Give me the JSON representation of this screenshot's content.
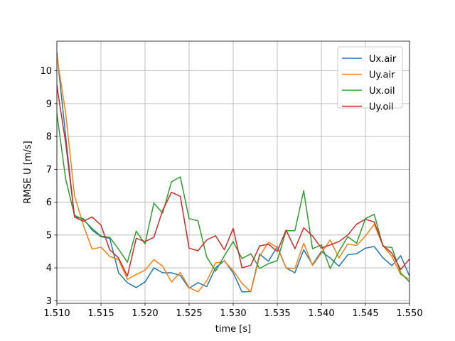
{
  "chart_data": {
    "type": "line",
    "xlabel": "time [s]",
    "ylabel": "RMSE U [m/s]",
    "xlim": [
      1.51,
      1.55
    ],
    "ylim": [
      2.92,
      10.9
    ],
    "xticks": [
      "1.510",
      "1.515",
      "1.520",
      "1.525",
      "1.530",
      "1.535",
      "1.540",
      "1.545",
      "1.550"
    ],
    "yticks": [
      "3",
      "4",
      "5",
      "6",
      "7",
      "8",
      "9",
      "10"
    ],
    "grid": true,
    "legend_position": "top-right",
    "x": [
      1.51,
      1.511,
      1.512,
      1.513,
      1.514,
      1.515,
      1.516,
      1.517,
      1.518,
      1.519,
      1.52,
      1.521,
      1.522,
      1.523,
      1.524,
      1.525,
      1.526,
      1.527,
      1.528,
      1.529,
      1.53,
      1.531,
      1.532,
      1.533,
      1.534,
      1.535,
      1.536,
      1.537,
      1.538,
      1.539,
      1.54,
      1.541,
      1.542,
      1.543,
      1.544,
      1.545,
      1.546,
      1.547,
      1.548,
      1.549,
      1.55
    ],
    "series": [
      {
        "name": "Ux.air",
        "color": "#1f77b4",
        "values": [
          10.55,
          8.0,
          5.55,
          5.5,
          5.15,
          4.95,
          4.9,
          3.85,
          3.55,
          3.4,
          3.57,
          4.0,
          3.85,
          3.85,
          3.77,
          3.38,
          3.55,
          3.43,
          4.0,
          4.22,
          3.85,
          3.27,
          3.28,
          4.42,
          4.2,
          4.65,
          4.0,
          3.85,
          4.55,
          4.1,
          4.5,
          4.3,
          4.05,
          4.4,
          4.43,
          4.6,
          4.65,
          4.3,
          4.07,
          4.37,
          3.75
        ]
      },
      {
        "name": "Uy.air",
        "color": "#ff7f0e",
        "values": [
          10.45,
          8.7,
          6.2,
          5.3,
          4.57,
          4.63,
          4.35,
          4.25,
          3.65,
          3.8,
          3.93,
          4.25,
          4.05,
          3.57,
          3.86,
          3.4,
          3.27,
          3.6,
          4.15,
          4.2,
          3.92,
          3.53,
          3.27,
          4.35,
          4.78,
          4.62,
          4.0,
          3.98,
          4.75,
          4.07,
          4.45,
          4.85,
          4.3,
          4.73,
          4.68,
          4.97,
          5.33,
          4.67,
          4.35,
          3.8,
          3.65
        ]
      },
      {
        "name": "Ux.oil",
        "color": "#2ca02c",
        "values": [
          8.7,
          6.7,
          5.6,
          5.47,
          5.2,
          4.97,
          4.93,
          4.57,
          4.17,
          5.12,
          4.73,
          5.97,
          5.67,
          6.62,
          6.77,
          5.5,
          5.43,
          4.33,
          3.9,
          4.37,
          4.8,
          4.28,
          4.43,
          3.98,
          4.13,
          4.22,
          5.13,
          5.13,
          6.35,
          4.58,
          4.7,
          3.98,
          4.5,
          4.95,
          4.75,
          5.5,
          5.63,
          4.65,
          4.62,
          3.85,
          3.57
        ]
      },
      {
        "name": "Uy.oil",
        "color": "#d62728",
        "values": [
          9.55,
          7.8,
          5.55,
          5.42,
          5.55,
          5.3,
          4.55,
          4.3,
          3.75,
          4.9,
          4.8,
          4.93,
          5.75,
          6.3,
          6.18,
          4.6,
          4.52,
          4.85,
          4.98,
          4.55,
          5.2,
          4.0,
          4.08,
          4.67,
          4.72,
          4.5,
          5.15,
          4.58,
          5.22,
          4.97,
          4.6,
          4.7,
          4.8,
          5.0,
          5.33,
          5.48,
          5.4,
          4.68,
          4.45,
          3.95,
          4.27
        ]
      }
    ]
  }
}
